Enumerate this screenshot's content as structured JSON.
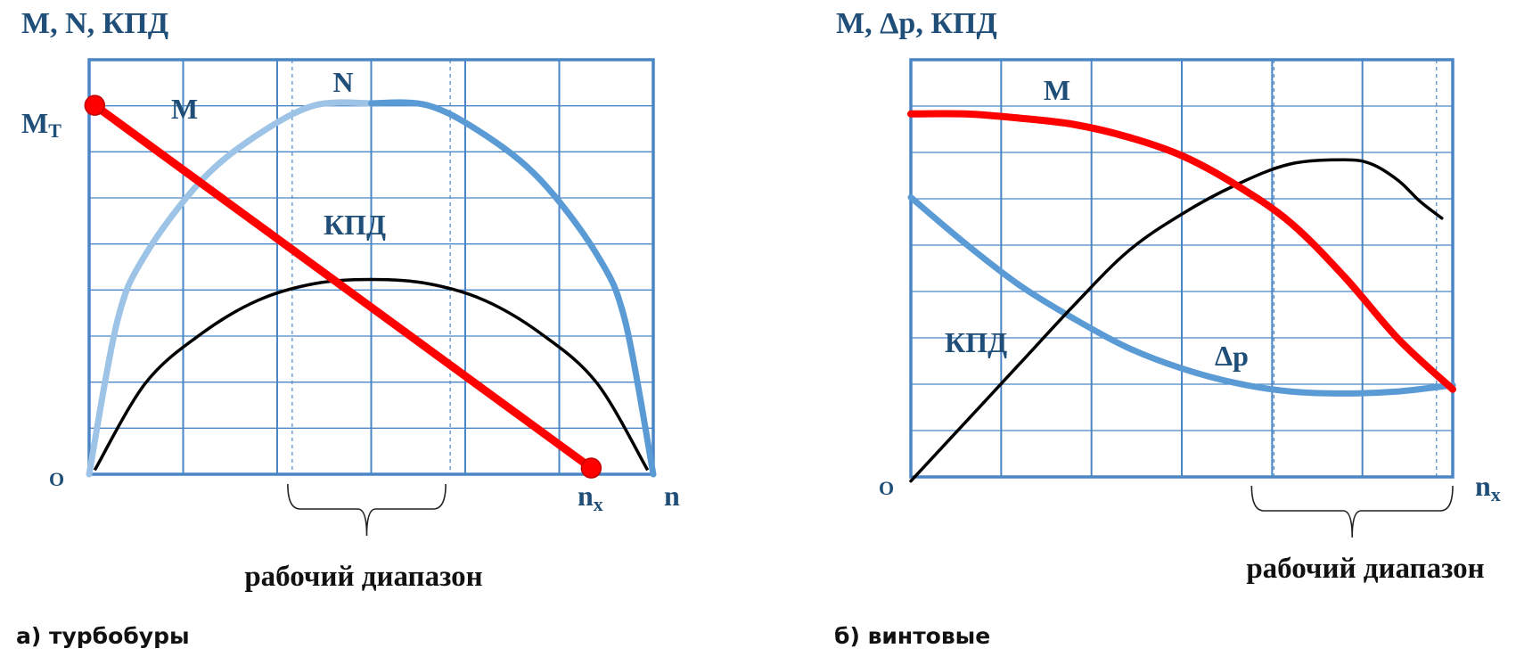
{
  "colors": {
    "grid": "#4a86c5",
    "frame": "#4a86c5",
    "red": "#ff0000",
    "blue": "#5b9bd5",
    "light_blue": "#9dc3e6",
    "black": "#000000",
    "label": "#1f4e79"
  },
  "chart_data": [
    {
      "type": "line",
      "caption": "а) турбобуры",
      "title": "M, N, КПД",
      "origin_label": "O",
      "x_axis_label": "n",
      "x_marker_label": "n",
      "x_marker_sub": "x",
      "y_marker_label": "M",
      "y_marker_sub": "T",
      "range_label": "рабочий диапазон",
      "xlim": [
        0,
        100
      ],
      "ylim": [
        0,
        100
      ],
      "working_range": [
        36,
        64
      ],
      "series": [
        {
          "name": "M",
          "color": "#ff0000",
          "x": [
            1,
            89
          ],
          "y": [
            89,
            1.5
          ],
          "endpoints": true
        },
        {
          "name": "N",
          "color_left": "#9dc3e6",
          "color_right": "#5b9bd5",
          "x": [
            0,
            5,
            10,
            20,
            30,
            40,
            50,
            60,
            70,
            80,
            90,
            95,
            100
          ],
          "y": [
            0,
            37,
            53,
            71,
            82,
            89,
            89.5,
            89,
            82,
            71,
            53,
            37,
            0
          ]
        },
        {
          "name": "КПД",
          "color": "#000000",
          "x": [
            1,
            10,
            20,
            30,
            40,
            50,
            60,
            70,
            80,
            90,
            99
          ],
          "y": [
            1,
            22,
            34,
            42,
            46,
            47,
            46,
            42,
            34,
            22,
            1
          ]
        }
      ]
    },
    {
      "type": "line",
      "caption": "б) винтовые",
      "title": "M, Δp, КПД",
      "origin_label": "O",
      "x_axis_label": "n",
      "x_axis_sub": "x",
      "range_label": "рабочий диапазон",
      "xlim": [
        0,
        100
      ],
      "ylim": [
        0,
        100
      ],
      "working_range": [
        67,
        97
      ],
      "series": [
        {
          "name": "M",
          "color": "#ff0000",
          "x": [
            0,
            10,
            20,
            30,
            40,
            50,
            60,
            70,
            80,
            90,
            100
          ],
          "y": [
            87,
            87,
            86,
            84.5,
            81.5,
            77,
            70,
            61,
            48,
            33,
            21
          ]
        },
        {
          "name": "КПД",
          "color": "#000000",
          "x": [
            0,
            10,
            20,
            30,
            40,
            50,
            60,
            70,
            80,
            85,
            90,
            94,
            98
          ],
          "y": [
            -1,
            13,
            27,
            41,
            54,
            63,
            70,
            75,
            76,
            75,
            71,
            66,
            62
          ]
        },
        {
          "name": "Δp",
          "color": "#5b9bd5",
          "x": [
            0,
            10,
            20,
            30,
            40,
            50,
            60,
            70,
            80,
            90,
            100
          ],
          "y": [
            67,
            56,
            46,
            38,
            31,
            26,
            22.5,
            20.5,
            20,
            20.5,
            22
          ]
        }
      ]
    }
  ]
}
